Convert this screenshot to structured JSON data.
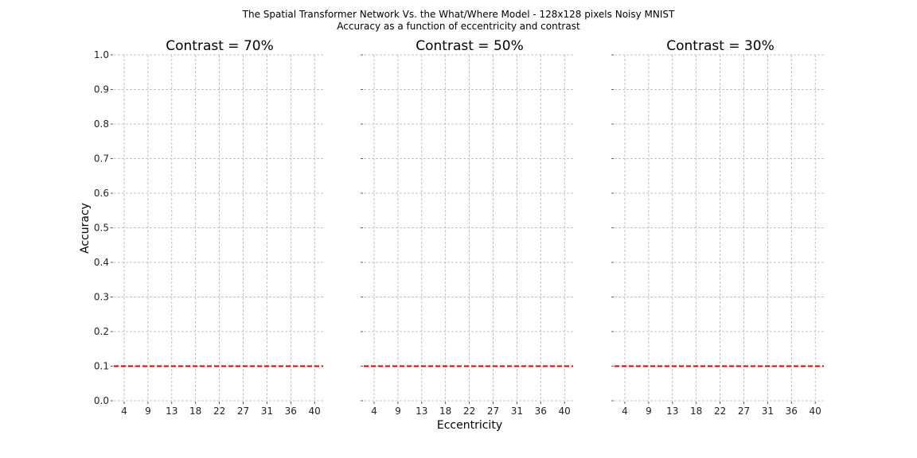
{
  "figure": {
    "title_line1": "The Spatial Transformer Network Vs. the What/Where Model - 128x128 pixels Noisy MNIST",
    "title_line2": "Accuracy as a function of eccentricity and contrast",
    "xlabel": "Eccentricity",
    "ylabel": "Accuracy",
    "reference_line_color": "#e00000"
  },
  "chart_data": [
    {
      "type": "line",
      "title": "Contrast = 70%",
      "x": [
        4,
        9,
        13,
        18,
        22,
        27,
        31,
        36,
        40
      ],
      "ylim": [
        0.0,
        1.0
      ],
      "yticks": [
        "0.0",
        "0.1",
        "0.2",
        "0.3",
        "0.4",
        "0.5",
        "0.6",
        "0.7",
        "0.8",
        "0.9",
        "1.0"
      ],
      "grid": true,
      "show_ytick_labels": true,
      "reference_y": 0.1
    },
    {
      "type": "line",
      "title": "Contrast = 50%",
      "x": [
        4,
        9,
        13,
        18,
        22,
        27,
        31,
        36,
        40
      ],
      "ylim": [
        0.0,
        1.0
      ],
      "yticks": [
        "0.0",
        "0.1",
        "0.2",
        "0.3",
        "0.4",
        "0.5",
        "0.6",
        "0.7",
        "0.8",
        "0.9",
        "1.0"
      ],
      "grid": true,
      "show_ytick_labels": false,
      "reference_y": 0.1
    },
    {
      "type": "line",
      "title": "Contrast = 30%",
      "x": [
        4,
        9,
        13,
        18,
        22,
        27,
        31,
        36,
        40
      ],
      "ylim": [
        0.0,
        1.0
      ],
      "yticks": [
        "0.0",
        "0.1",
        "0.2",
        "0.3",
        "0.4",
        "0.5",
        "0.6",
        "0.7",
        "0.8",
        "0.9",
        "1.0"
      ],
      "grid": true,
      "show_ytick_labels": false,
      "reference_y": 0.1
    }
  ]
}
